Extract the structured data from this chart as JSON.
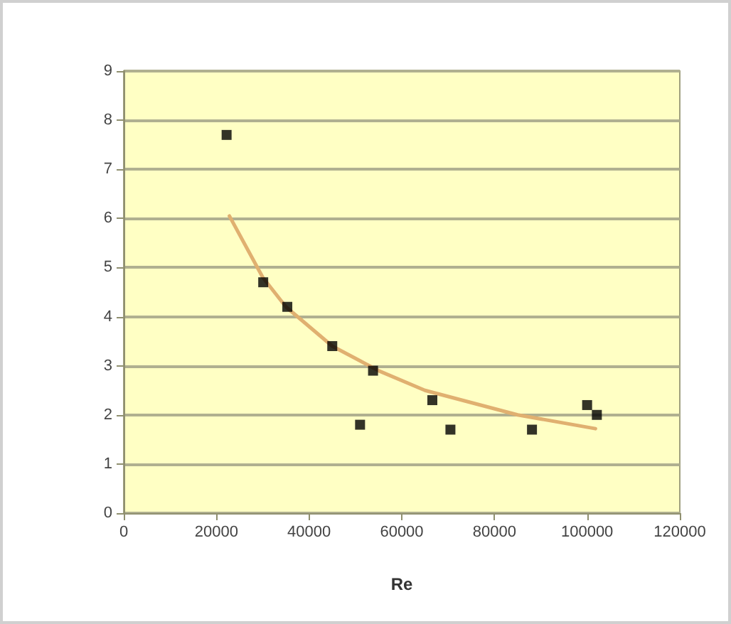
{
  "chart_data": {
    "type": "scatter",
    "xlabel": "Re",
    "series": [
      {
        "color": "#000000",
        "marker": "square",
        "x": [
          22200,
          30100,
          35300,
          45000,
          51000,
          53800,
          66600,
          70500,
          88100,
          100000,
          102100
        ],
        "values": [
          7.7,
          4.7,
          4.2,
          3.4,
          1.8,
          2.9,
          2.3,
          1.7,
          1.7,
          2.2,
          2.0
        ]
      },
      {
        "type": "line",
        "color": "#e0b070",
        "marker": "none",
        "x": [
          22800,
          30000,
          35000,
          45000,
          55000,
          65000,
          75000,
          85000,
          101800
        ],
        "values": [
          6.05,
          4.8,
          4.2,
          3.4,
          2.9,
          2.5,
          2.25,
          2.0,
          1.72
        ]
      }
    ],
    "xlim": [
      0,
      120000
    ],
    "xticks": [
      0,
      20000,
      40000,
      60000,
      80000,
      100000,
      120000
    ],
    "ylim": [
      0,
      9
    ],
    "yticks": [
      0,
      1,
      2,
      3,
      4,
      5,
      6,
      7,
      8,
      9
    ],
    "grid": "y"
  }
}
